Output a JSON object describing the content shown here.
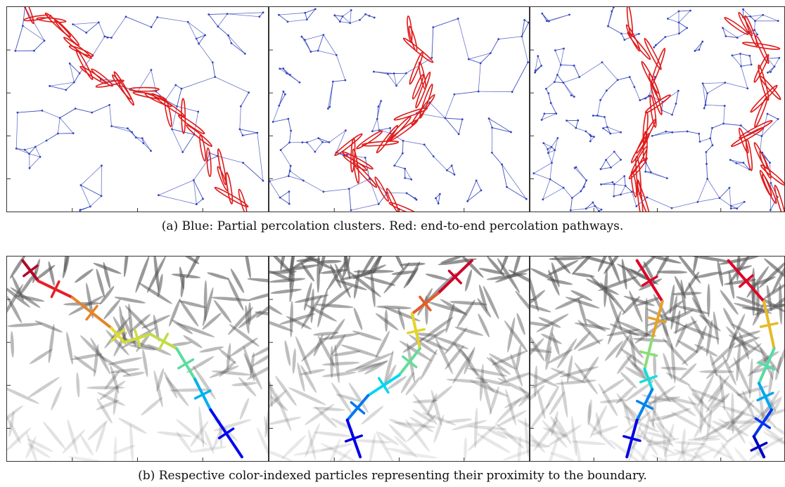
{
  "figure": {
    "row_a": {
      "caption": "(a) Blue: Partial percolation clusters. Red: end-to-end percolation pathways.",
      "panels": [
        {
          "id": "a1",
          "particle_count": 90,
          "network_color": "#3344bb",
          "pathway_color": "#e01b1b"
        },
        {
          "id": "a2",
          "particle_count": 120,
          "network_color": "#3344bb",
          "pathway_color": "#e01b1b"
        },
        {
          "id": "a3",
          "particle_count": 180,
          "network_color": "#3344bb",
          "pathway_color": "#e01b1b"
        }
      ]
    },
    "row_b": {
      "caption": "(b) Respective color-indexed particles representing their proximity to the boundary.",
      "colormap": "jet",
      "background_particle_color": "#555555",
      "panels": [
        {
          "id": "b1",
          "particle_count": 160
        },
        {
          "id": "b2",
          "particle_count": 220
        },
        {
          "id": "b3",
          "particle_count": 300
        }
      ]
    }
  }
}
